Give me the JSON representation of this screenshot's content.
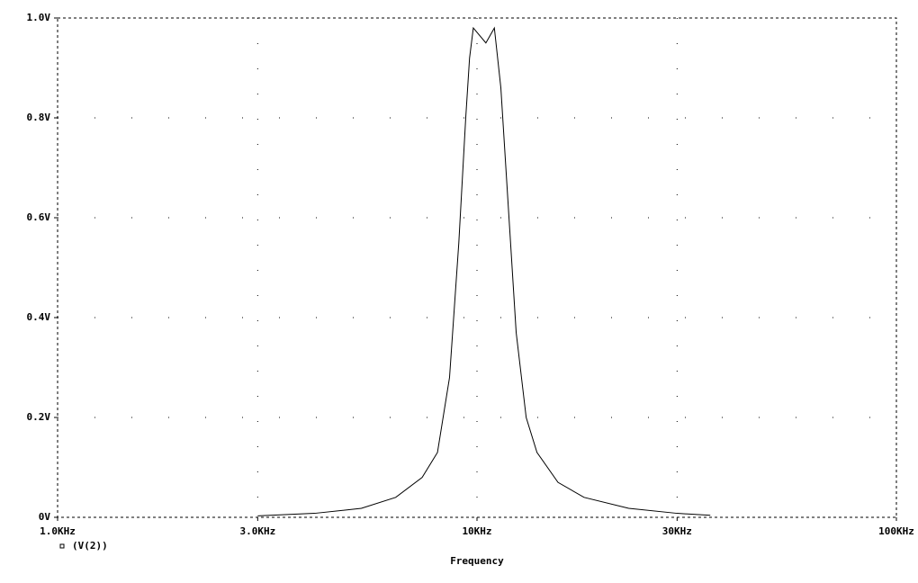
{
  "chart_data": {
    "type": "line",
    "x_label": "Frequency",
    "xscale": "log",
    "xlim": [
      1000,
      100000
    ],
    "xticks": [
      {
        "value": 1000,
        "label": "1.0KHz"
      },
      {
        "value": 3000,
        "label": "3.0KHz"
      },
      {
        "value": 10000,
        "label": "10KHz"
      },
      {
        "value": 30000,
        "label": "30KHz"
      },
      {
        "value": 100000,
        "label": "100KHz"
      }
    ],
    "ylim": [
      0,
      1.0
    ],
    "yticks": [
      {
        "value": 0,
        "label": "0V"
      },
      {
        "value": 0.2,
        "label": "0.2V"
      },
      {
        "value": 0.4,
        "label": "0.4V"
      },
      {
        "value": 0.6,
        "label": "0.6V"
      },
      {
        "value": 0.8,
        "label": "0.8V"
      },
      {
        "value": 1.0,
        "label": "1.0V"
      }
    ],
    "grid": true,
    "x": [
      3000,
      4100,
      5300,
      6400,
      7400,
      8050,
      8600,
      9050,
      9400,
      9600,
      9800,
      10500,
      11000,
      11400,
      12400,
      13100,
      13900,
      15600,
      18000,
      23000,
      30000,
      36000
    ],
    "series": [
      {
        "name": "(V(2))",
        "color": "#000000",
        "values": [
          0.003,
          0.008,
          0.018,
          0.04,
          0.08,
          0.13,
          0.28,
          0.55,
          0.8,
          0.92,
          0.98,
          0.95,
          0.98,
          0.86,
          0.37,
          0.2,
          0.13,
          0.07,
          0.04,
          0.018,
          0.008,
          0.004
        ]
      }
    ]
  }
}
